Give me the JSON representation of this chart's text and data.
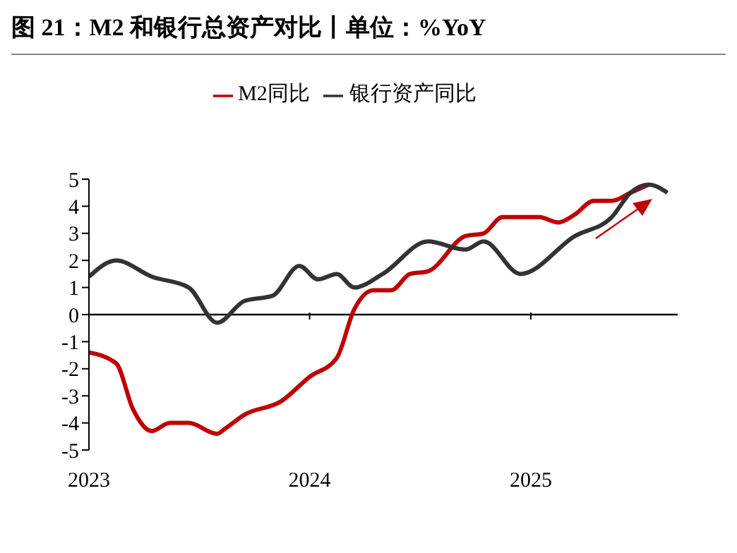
{
  "chart_data": {
    "type": "line",
    "title": "图 21：M2 和银行总资产对比丨单位：%YoY",
    "xlim": [
      "2023-01-01",
      "2025-09-01"
    ],
    "xticks": [
      "2023",
      "2024",
      "2025"
    ],
    "ylim": [
      -5,
      5
    ],
    "yticks": [
      -5,
      -4,
      -3,
      -2,
      -1,
      0,
      1,
      2,
      3,
      4,
      5
    ],
    "legend": "top",
    "grid": false,
    "ref_lines": [
      {
        "axis": "y",
        "value": 0,
        "color": "#000000"
      }
    ],
    "series": [
      {
        "name": "M2同比",
        "color": "#c00000",
        "x": [
          "2023-01-01",
          "2023-02-15",
          "2023-03-15",
          "2023-04-15",
          "2023-05-15",
          "2023-06-15",
          "2023-08-01",
          "2023-08-15",
          "2023-09-15",
          "2023-11-15",
          "2024-01-01",
          "2024-02-15",
          "2024-03-15",
          "2024-04-15",
          "2024-05-15",
          "2024-06-15",
          "2024-07-15",
          "2024-09-15",
          "2024-10-15",
          "2024-11-15",
          "2025-01-15",
          "2025-02-15",
          "2025-03-15",
          "2025-04-15",
          "2025-05-15",
          "2025-06-15",
          "2025-07-15"
        ],
        "values": [
          -1.4,
          -1.8,
          -3.5,
          -4.3,
          -4.0,
          -4.0,
          -4.4,
          -4.2,
          -3.7,
          -3.2,
          -2.3,
          -1.6,
          0.2,
          0.9,
          0.9,
          1.5,
          1.6,
          2.9,
          3.0,
          3.6,
          3.6,
          3.4,
          3.7,
          4.2,
          4.2,
          4.5,
          4.8
        ]
      },
      {
        "name": "银行资产同比",
        "color": "#333333",
        "x": [
          "2023-01-01",
          "2023-02-15",
          "2023-04-15",
          "2023-06-15",
          "2023-08-01",
          "2023-09-15",
          "2023-11-01",
          "2023-12-15",
          "2024-01-15",
          "2024-02-15",
          "2024-03-15",
          "2024-05-01",
          "2024-07-15",
          "2024-09-15",
          "2024-10-15",
          "2024-12-15",
          "2025-03-15",
          "2025-05-15",
          "2025-06-15",
          "2025-07-15",
          "2025-08-15"
        ],
        "values": [
          1.4,
          2.0,
          1.4,
          1.0,
          -0.3,
          0.5,
          0.7,
          1.8,
          1.3,
          1.5,
          1.0,
          1.5,
          2.7,
          2.4,
          2.7,
          1.5,
          2.9,
          3.6,
          4.5,
          4.8,
          4.5
        ]
      }
    ]
  }
}
